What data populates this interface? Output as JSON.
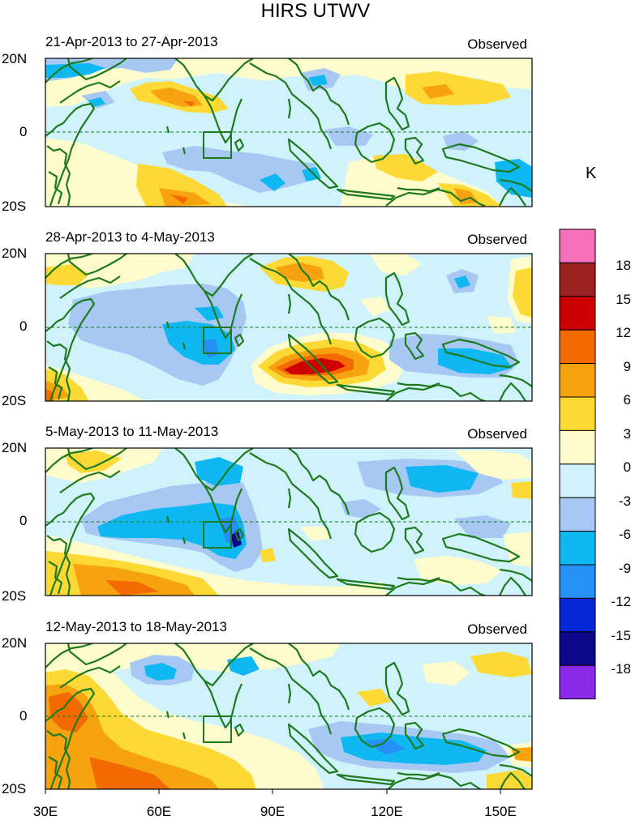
{
  "title": "HIRS UTWV",
  "unit": "K",
  "panels": [
    {
      "label": "21-Apr-2013 to 27-Apr-2013",
      "tag": "Observed"
    },
    {
      "label": "28-Apr-2013 to 4-May-2013",
      "tag": "Observed"
    },
    {
      "label": "5-May-2013 to 11-May-2013",
      "tag": "Observed"
    },
    {
      "label": "12-May-2013 to 18-May-2013",
      "tag": "Observed"
    }
  ],
  "lat_labels": [
    "20N",
    "0",
    "20S"
  ],
  "lon_labels": [
    "30E",
    "60E",
    "90E",
    "120E",
    "150E"
  ],
  "colorbar": {
    "labels": [
      "18",
      "15",
      "12",
      "9",
      "6",
      "3",
      "0",
      "-3",
      "-6",
      "-9",
      "-12",
      "-15",
      "-18"
    ],
    "colors": [
      "#f570b8",
      "#9b2121",
      "#cc0000",
      "#f26a00",
      "#f7a30f",
      "#fcd935",
      "#fefccc",
      "#cff2fb",
      "#a6c8f3",
      "#10b8f2",
      "#2590f5",
      "#0a27d6",
      "#0d078a",
      "#8c28e8"
    ]
  },
  "colors": {
    "coast": "#1f7a1f",
    "box": "#1f7a1f",
    "equator": "#1f7a1f"
  }
}
